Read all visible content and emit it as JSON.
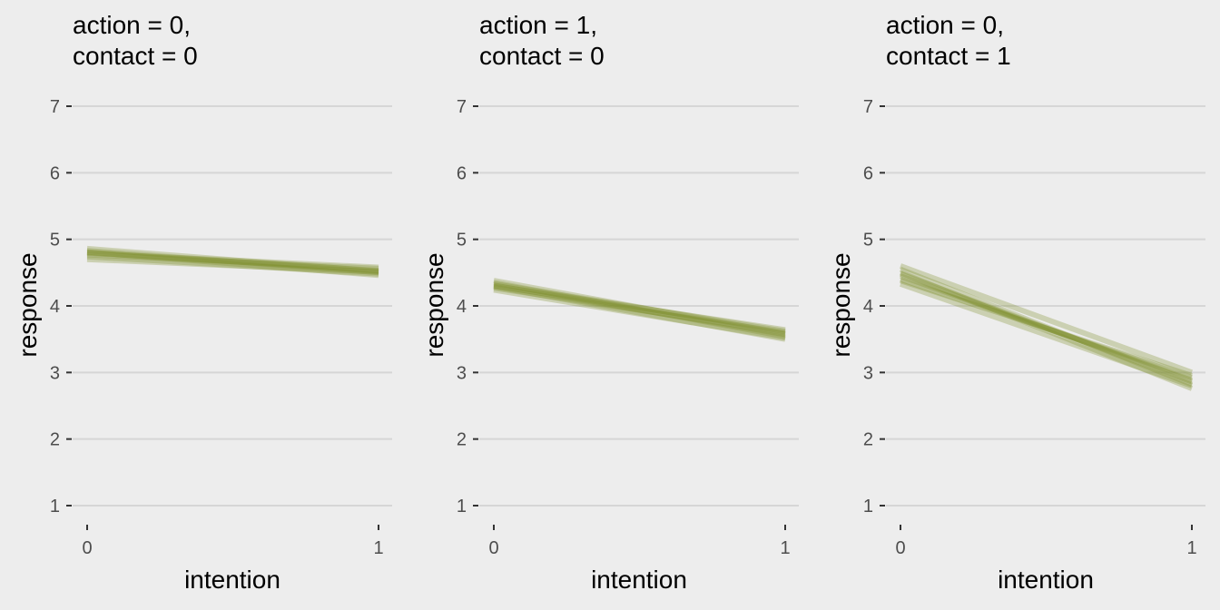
{
  "chart_data": [
    {
      "type": "line",
      "title": [
        "action = 0,",
        "contact = 0"
      ],
      "xlabel": "intention",
      "ylabel": "response",
      "x_ticks": [
        "0",
        "1"
      ],
      "y_ticks": [
        "1",
        "2",
        "3",
        "4",
        "5",
        "6",
        "7"
      ],
      "xlim": [
        0,
        1
      ],
      "ylim": [
        1,
        7
      ],
      "grid": "horizontal",
      "line_color": "#7f8f2b",
      "x": [
        0,
        1
      ],
      "series": [
        {
          "values": [
            4.8,
            4.53
          ]
        },
        {
          "values": [
            4.83,
            4.5
          ]
        },
        {
          "values": [
            4.77,
            4.56
          ]
        },
        {
          "values": [
            4.74,
            4.48
          ]
        },
        {
          "values": [
            4.86,
            4.52
          ]
        },
        {
          "values": [
            4.79,
            4.58
          ]
        },
        {
          "values": [
            4.7,
            4.51
          ]
        },
        {
          "values": [
            4.81,
            4.46
          ]
        }
      ]
    },
    {
      "type": "line",
      "title": [
        "action = 1,",
        "contact = 0"
      ],
      "xlabel": "intention",
      "ylabel": "response",
      "x_ticks": [
        "0",
        "1"
      ],
      "y_ticks": [
        "1",
        "2",
        "3",
        "4",
        "5",
        "6",
        "7"
      ],
      "xlim": [
        0,
        1
      ],
      "ylim": [
        1,
        7
      ],
      "grid": "horizontal",
      "line_color": "#7f8f2b",
      "x": [
        0,
        1
      ],
      "series": [
        {
          "values": [
            4.31,
            3.57
          ]
        },
        {
          "values": [
            4.35,
            3.54
          ]
        },
        {
          "values": [
            4.27,
            3.6
          ]
        },
        {
          "values": [
            4.24,
            3.52
          ]
        },
        {
          "values": [
            4.38,
            3.58
          ]
        },
        {
          "values": [
            4.3,
            3.64
          ]
        },
        {
          "values": [
            4.29,
            3.5
          ]
        },
        {
          "values": [
            4.33,
            3.62
          ]
        }
      ]
    },
    {
      "type": "line",
      "title": [
        "action = 0,",
        "contact = 1"
      ],
      "xlabel": "intention",
      "ylabel": "response",
      "x_ticks": [
        "0",
        "1"
      ],
      "y_ticks": [
        "1",
        "2",
        "3",
        "4",
        "5",
        "6",
        "7"
      ],
      "xlim": [
        0,
        1
      ],
      "ylim": [
        1,
        7
      ],
      "grid": "horizontal",
      "line_color": "#7f8f2b",
      "x": [
        0,
        1
      ],
      "series": [
        {
          "values": [
            4.45,
            2.88
          ]
        },
        {
          "values": [
            4.55,
            2.82
          ]
        },
        {
          "values": [
            4.38,
            2.95
          ]
        },
        {
          "values": [
            4.5,
            2.76
          ]
        },
        {
          "values": [
            4.4,
            2.92
          ]
        },
        {
          "values": [
            4.6,
            3.0
          ]
        },
        {
          "values": [
            4.33,
            2.8
          ]
        },
        {
          "values": [
            4.48,
            2.86
          ]
        }
      ]
    }
  ]
}
